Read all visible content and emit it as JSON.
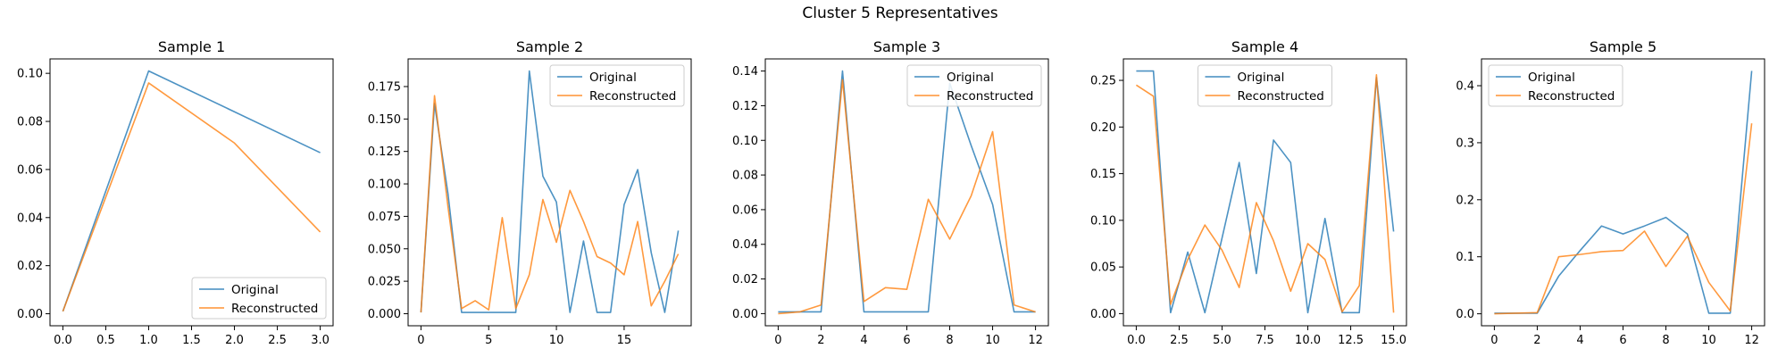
{
  "figure_title": "Cluster 5 Representatives",
  "colors": {
    "original": "#1f77b4",
    "reconstructed": "#ff7f0e"
  },
  "chart_data": [
    {
      "type": "line",
      "title": "Sample 1",
      "xlabel": "",
      "ylabel": "",
      "xlim": [
        -0.15,
        3.15
      ],
      "ylim": [
        -0.005,
        0.106
      ],
      "xticks": [
        0.0,
        0.5,
        1.0,
        1.5,
        2.0,
        2.5,
        3.0
      ],
      "xtick_labels": [
        "0.0",
        "0.5",
        "1.0",
        "1.5",
        "2.0",
        "2.5",
        "3.0"
      ],
      "yticks": [
        0.0,
        0.02,
        0.04,
        0.06,
        0.08,
        0.1
      ],
      "ytick_labels": [
        "0.00",
        "0.02",
        "0.04",
        "0.06",
        "0.08",
        "0.10"
      ],
      "legend": "lower-right",
      "grid": false,
      "series": [
        {
          "name": "Original",
          "x": [
            0,
            1,
            2,
            3
          ],
          "y": [
            0.001,
            0.101,
            0.084,
            0.067
          ]
        },
        {
          "name": "Reconstructed",
          "x": [
            0,
            1,
            2,
            3
          ],
          "y": [
            0.001,
            0.096,
            0.071,
            0.034
          ]
        }
      ]
    },
    {
      "type": "line",
      "title": "Sample 2",
      "xlabel": "",
      "ylabel": "",
      "xlim": [
        -0.95,
        19.95
      ],
      "ylim": [
        -0.0093,
        0.1963
      ],
      "xticks": [
        0,
        5,
        10,
        15
      ],
      "xtick_labels": [
        "0",
        "5",
        "10",
        "15"
      ],
      "yticks": [
        0.0,
        0.025,
        0.05,
        0.075,
        0.1,
        0.125,
        0.15,
        0.175
      ],
      "ytick_labels": [
        "0.000",
        "0.025",
        "0.050",
        "0.075",
        "0.100",
        "0.125",
        "0.150",
        "0.175"
      ],
      "legend": "upper-right",
      "grid": false,
      "series": [
        {
          "name": "Original",
          "x": [
            0,
            1,
            2,
            3,
            4,
            5,
            6,
            7,
            8,
            9,
            10,
            11,
            12,
            13,
            14,
            15,
            16,
            17,
            18,
            19
          ],
          "y": [
            0.001,
            0.162,
            0.092,
            0.001,
            0.001,
            0.001,
            0.001,
            0.001,
            0.187,
            0.106,
            0.086,
            0.001,
            0.056,
            0.001,
            0.001,
            0.084,
            0.111,
            0.047,
            0.001,
            0.064
          ]
        },
        {
          "name": "Reconstructed",
          "x": [
            0,
            1,
            2,
            3,
            4,
            5,
            6,
            7,
            8,
            9,
            10,
            11,
            12,
            13,
            14,
            15,
            16,
            17,
            18,
            19
          ],
          "y": [
            0.001,
            0.168,
            0.082,
            0.004,
            0.01,
            0.003,
            0.074,
            0.004,
            0.03,
            0.088,
            0.055,
            0.095,
            0.071,
            0.044,
            0.039,
            0.03,
            0.071,
            0.006,
            0.025,
            0.046
          ]
        }
      ]
    },
    {
      "type": "line",
      "title": "Sample 3",
      "xlabel": "",
      "ylabel": "",
      "xlim": [
        -0.6,
        12.6
      ],
      "ylim": [
        -0.007,
        0.147
      ],
      "xticks": [
        0,
        2,
        4,
        6,
        8,
        10,
        12
      ],
      "xtick_labels": [
        "0",
        "2",
        "4",
        "6",
        "8",
        "10",
        "12"
      ],
      "yticks": [
        0.0,
        0.02,
        0.04,
        0.06,
        0.08,
        0.1,
        0.12,
        0.14
      ],
      "ytick_labels": [
        "0.00",
        "0.02",
        "0.04",
        "0.06",
        "0.08",
        "0.10",
        "0.12",
        "0.14"
      ],
      "legend": "upper-right",
      "grid": false,
      "series": [
        {
          "name": "Original",
          "x": [
            0,
            1,
            2,
            3,
            4,
            5,
            6,
            7,
            8,
            9,
            10,
            11,
            12
          ],
          "y": [
            0.001,
            0.001,
            0.001,
            0.14,
            0.001,
            0.001,
            0.001,
            0.001,
            0.133,
            0.097,
            0.063,
            0.001,
            0.001
          ]
        },
        {
          "name": "Reconstructed",
          "x": [
            0,
            1,
            2,
            3,
            4,
            5,
            6,
            7,
            8,
            9,
            10,
            11,
            12
          ],
          "y": [
            0.0,
            0.001,
            0.005,
            0.135,
            0.007,
            0.015,
            0.014,
            0.066,
            0.043,
            0.068,
            0.105,
            0.005,
            0.001
          ]
        }
      ]
    },
    {
      "type": "line",
      "title": "Sample 4",
      "xlabel": "",
      "ylabel": "",
      "xlim": [
        -0.75,
        15.75
      ],
      "ylim": [
        -0.013,
        0.273
      ],
      "xticks": [
        0.0,
        2.5,
        5.0,
        7.5,
        10.0,
        12.5,
        15.0
      ],
      "xtick_labels": [
        "0.0",
        "2.5",
        "5.0",
        "7.5",
        "10.0",
        "12.5",
        "15.0"
      ],
      "yticks": [
        0.0,
        0.05,
        0.1,
        0.15,
        0.2,
        0.25
      ],
      "ytick_labels": [
        "0.00",
        "0.05",
        "0.10",
        "0.15",
        "0.20",
        "0.25"
      ],
      "legend": "upper-center",
      "grid": false,
      "series": [
        {
          "name": "Original",
          "x": [
            0,
            1,
            2,
            3,
            4,
            5,
            6,
            7,
            8,
            9,
            10,
            11,
            12,
            13,
            14,
            15
          ],
          "y": [
            0.26,
            0.26,
            0.001,
            0.066,
            0.001,
            0.081,
            0.162,
            0.043,
            0.186,
            0.162,
            0.001,
            0.102,
            0.001,
            0.001,
            0.253,
            0.088
          ]
        },
        {
          "name": "Reconstructed",
          "x": [
            0,
            1,
            2,
            3,
            4,
            5,
            6,
            7,
            8,
            9,
            10,
            11,
            12,
            13,
            14,
            15
          ],
          "y": [
            0.245,
            0.233,
            0.01,
            0.058,
            0.095,
            0.068,
            0.028,
            0.119,
            0.078,
            0.024,
            0.075,
            0.058,
            0.002,
            0.03,
            0.256,
            0.001
          ]
        }
      ]
    },
    {
      "type": "line",
      "title": "Sample 5",
      "xlabel": "",
      "ylabel": "",
      "xlim": [
        -0.6,
        12.6
      ],
      "ylim": [
        -0.021,
        0.447
      ],
      "xticks": [
        0,
        2,
        4,
        6,
        8,
        10,
        12
      ],
      "xtick_labels": [
        "0",
        "2",
        "4",
        "6",
        "8",
        "10",
        "12"
      ],
      "yticks": [
        0.0,
        0.1,
        0.2,
        0.3,
        0.4
      ],
      "ytick_labels": [
        "0.0",
        "0.1",
        "0.2",
        "0.3",
        "0.4"
      ],
      "legend": "upper-left",
      "grid": false,
      "series": [
        {
          "name": "Original",
          "x": [
            0,
            1,
            2,
            3,
            4,
            5,
            6,
            7,
            8,
            9,
            10,
            11,
            12
          ],
          "y": [
            0.001,
            0.001,
            0.001,
            0.066,
            0.111,
            0.154,
            0.14,
            0.154,
            0.169,
            0.14,
            0.001,
            0.001,
            0.426
          ]
        },
        {
          "name": "Reconstructed",
          "x": [
            0,
            1,
            2,
            3,
            4,
            5,
            6,
            7,
            8,
            9,
            10,
            11,
            12
          ],
          "y": [
            0.0,
            0.001,
            0.002,
            0.1,
            0.104,
            0.109,
            0.111,
            0.145,
            0.083,
            0.136,
            0.055,
            0.005,
            0.334
          ]
        }
      ]
    }
  ]
}
